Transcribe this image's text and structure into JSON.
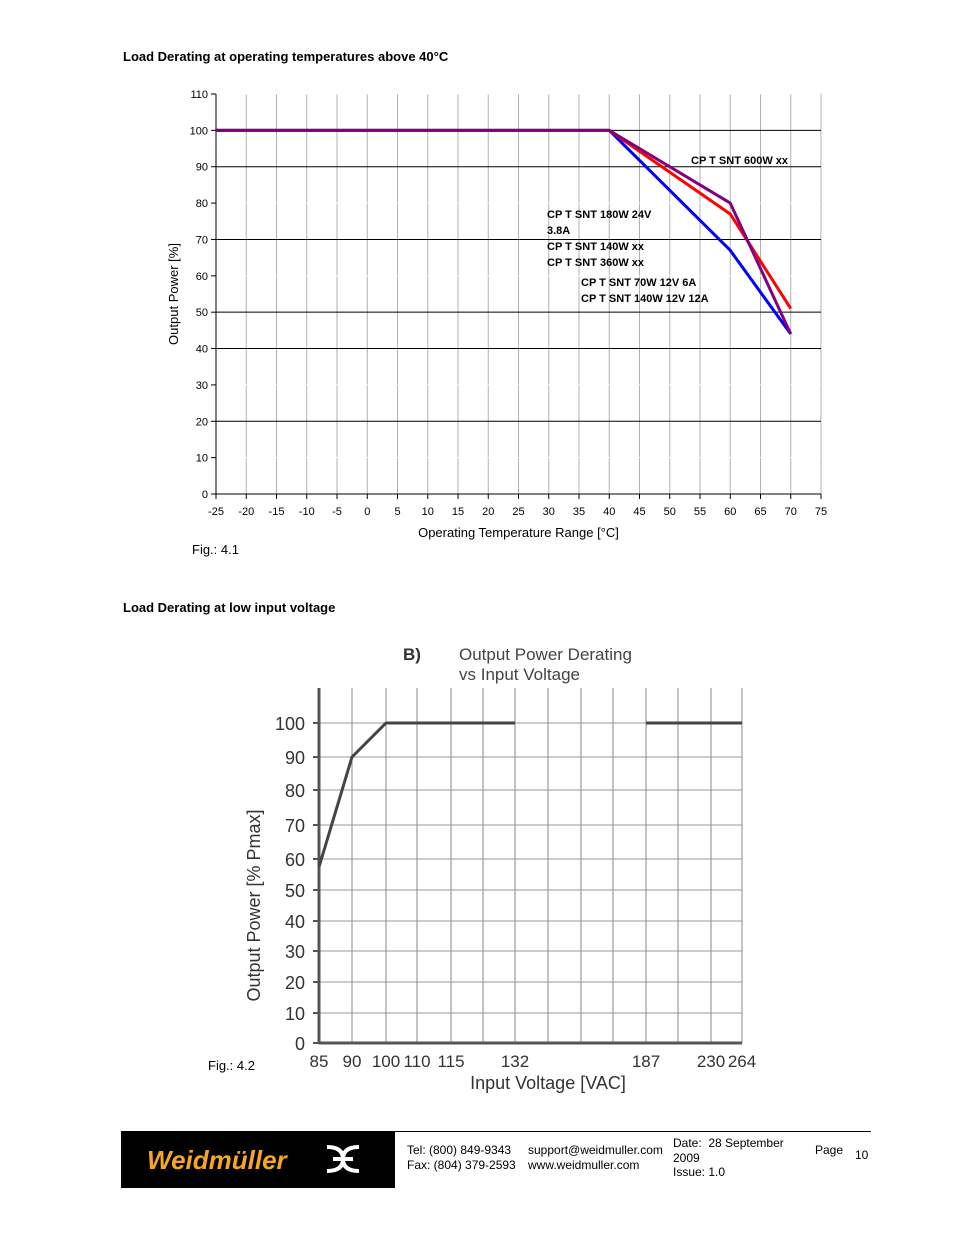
{
  "section1": {
    "heading": "Load Derating at operating temperatures above 40°C",
    "fig_label": "Fig.: 4.1"
  },
  "section2": {
    "heading": "Load Derating at low input voltage",
    "fig_label": "Fig.: 4.2"
  },
  "chart_data": [
    {
      "type": "line",
      "xlabel": "Operating Temperature Range [°C]",
      "ylabel": "Output Power [%]",
      "xlim": [
        -25,
        75
      ],
      "ylim": [
        0,
        110
      ],
      "x_ticks": [
        -25,
        -20,
        -15,
        -10,
        -5,
        0,
        5,
        10,
        15,
        20,
        25,
        30,
        35,
        40,
        45,
        50,
        55,
        60,
        65,
        70,
        75
      ],
      "y_ticks": [
        0,
        10,
        20,
        30,
        40,
        50,
        60,
        70,
        80,
        90,
        100,
        110
      ],
      "grid": true,
      "series": [
        {
          "color": "#0000ff",
          "points": [
            [
              -25,
              100
            ],
            [
              40,
              100
            ],
            [
              60,
              67
            ],
            [
              70,
              44
            ]
          ]
        },
        {
          "color": "#ff0000",
          "points": [
            [
              -25,
              100
            ],
            [
              40,
              100
            ],
            [
              60,
              77
            ],
            [
              70,
              51
            ]
          ]
        },
        {
          "color": "#800080",
          "points": [
            [
              -25,
              100
            ],
            [
              40,
              100
            ],
            [
              60,
              80
            ],
            [
              70,
              44
            ]
          ]
        }
      ],
      "annotations": [
        {
          "lines": [
            "CP T SNT 600W xx"
          ]
        },
        {
          "lines": [
            "CP T SNT 180W 24V",
            "3.8A",
            "CP T SNT 140W xx",
            "CP T SNT 360W xx"
          ]
        },
        {
          "lines": [
            "CP T SNT 70W 12V 6A",
            "CP T SNT 140W 12V 12A"
          ]
        }
      ]
    },
    {
      "type": "line",
      "prefix": "B)",
      "title_lines": [
        "Output Power Derating",
        "vs Input Voltage"
      ],
      "xlabel": "Input Voltage [VAC]",
      "ylabel": "Output Power [% Pmax]",
      "x_ticks": [
        "85",
        "90",
        "100",
        "110",
        "115",
        "132",
        "187",
        "230",
        "264"
      ],
      "y_ticks": [
        0,
        10,
        20,
        30,
        40,
        50,
        60,
        70,
        80,
        90,
        100
      ],
      "ylim": [
        0,
        100
      ],
      "grid": true,
      "segments": [
        [
          [
            "85",
            55
          ],
          [
            "90",
            90
          ],
          [
            "100",
            100
          ],
          [
            "132",
            100
          ]
        ],
        [
          [
            "187",
            100
          ],
          [
            "264",
            100
          ]
        ]
      ]
    }
  ],
  "footer": {
    "logo_text": "Weidmüller",
    "tel": "Tel:  (800) 849-9343",
    "fax": "Fax: (804) 379-2593",
    "email": "support@weidmuller.com",
    "web": "www.weidmuller.com",
    "date_label": "Date:",
    "date_value": "28 September",
    "date_year": "2009",
    "issue": "Issue: 1.0",
    "page_label": "Page",
    "page_number": "10"
  }
}
